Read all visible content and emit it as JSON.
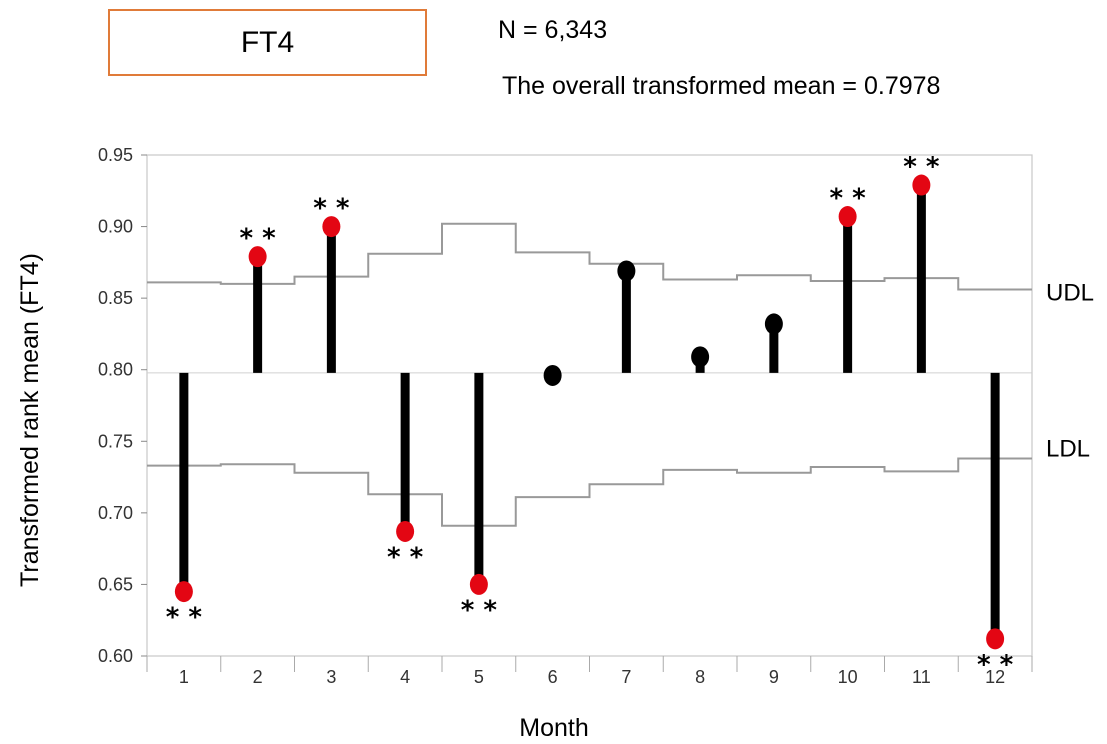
{
  "header": {
    "title": "FT4",
    "n_text": "N = 6,343",
    "mean_text": "The overall transformed mean = 0.7978"
  },
  "chart_data": {
    "type": "scatter",
    "title": "FT4",
    "xlabel": "Month",
    "ylabel": "Transformed rank mean (FT4)",
    "ylim": [
      0.6,
      0.95
    ],
    "yticks": [
      "0.60",
      "0.65",
      "0.70",
      "0.75",
      "0.80",
      "0.85",
      "0.90",
      "0.95"
    ],
    "categories": [
      "1",
      "2",
      "3",
      "4",
      "5",
      "6",
      "7",
      "8",
      "9",
      "10",
      "11",
      "12"
    ],
    "overall_mean": 0.7978,
    "values": [
      0.645,
      0.879,
      0.9,
      0.687,
      0.65,
      0.796,
      0.869,
      0.809,
      0.832,
      0.907,
      0.929,
      0.612
    ],
    "significant": [
      true,
      true,
      true,
      true,
      true,
      false,
      false,
      false,
      false,
      true,
      true,
      true
    ],
    "significance_mark": "* *",
    "udl": [
      0.861,
      0.86,
      0.865,
      0.881,
      0.902,
      0.882,
      0.874,
      0.863,
      0.866,
      0.862,
      0.864,
      0.856
    ],
    "ldl": [
      0.733,
      0.734,
      0.728,
      0.713,
      0.691,
      0.711,
      0.72,
      0.73,
      0.728,
      0.732,
      0.729,
      0.738
    ],
    "udl_label": "UDL",
    "ldl_label": "LDL",
    "colors": {
      "significant": "#e30613",
      "normal": "#000000",
      "limit_line": "#999999",
      "title_border": "#e07b39"
    },
    "grid": false
  }
}
